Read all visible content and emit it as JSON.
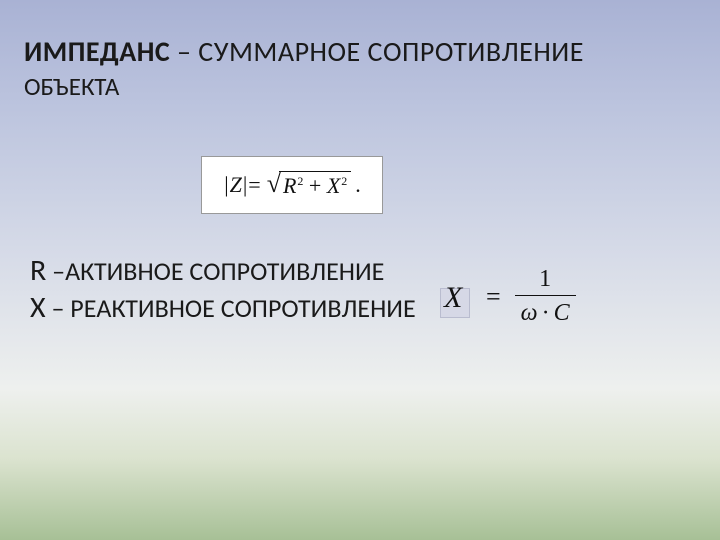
{
  "title": {
    "bold": "ИМПЕДАНС",
    "rest": " – СУММАРНОЕ СОПРОТИВЛЕНИЕ",
    "line2": "ОБЪЕКТА"
  },
  "formula_z": {
    "abs_open": "|",
    "Z": "Z",
    "abs_close": "|",
    "eq": " = ",
    "R": "R",
    "plus": " + ",
    "X": "X",
    "sup": "2",
    "dot": "."
  },
  "definitions": {
    "r_sym": "R",
    "r_text": " –АКТИВНОЕ СОПРОТИВЛЕНИЕ",
    "x_sym": "Х",
    "x_text": " – РЕАКТИВНОЕ СОПРОТИВЛЕНИЕ"
  },
  "x_equation": {
    "X": "X",
    "eq": "=",
    "num": "1",
    "omega": "ω",
    "dot": "·",
    "C": "C"
  },
  "colors": {
    "text": "#1a1a1a",
    "formula_bg": "#ffffff",
    "formula_border": "#999999",
    "highlight_bg": "#d6d8e6",
    "highlight_border": "#b9bccf"
  }
}
